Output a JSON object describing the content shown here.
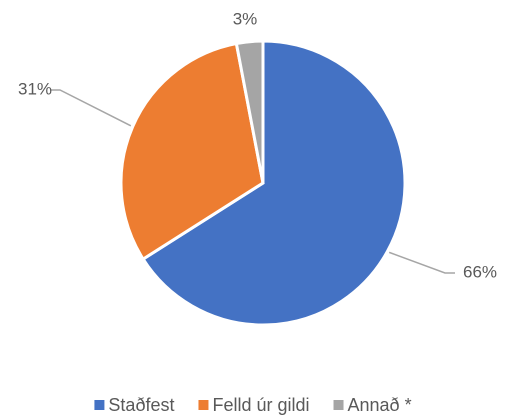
{
  "chart_data": {
    "type": "pie",
    "categories": [
      "Staðfest",
      "Felld úr gildi",
      "Annað *"
    ],
    "values": [
      66,
      31,
      3
    ],
    "value_labels": [
      "66%",
      "31%",
      "3%"
    ],
    "colors": [
      "#4472c4",
      "#ed7d31",
      "#a5a5a5"
    ],
    "legend": "bottom"
  }
}
